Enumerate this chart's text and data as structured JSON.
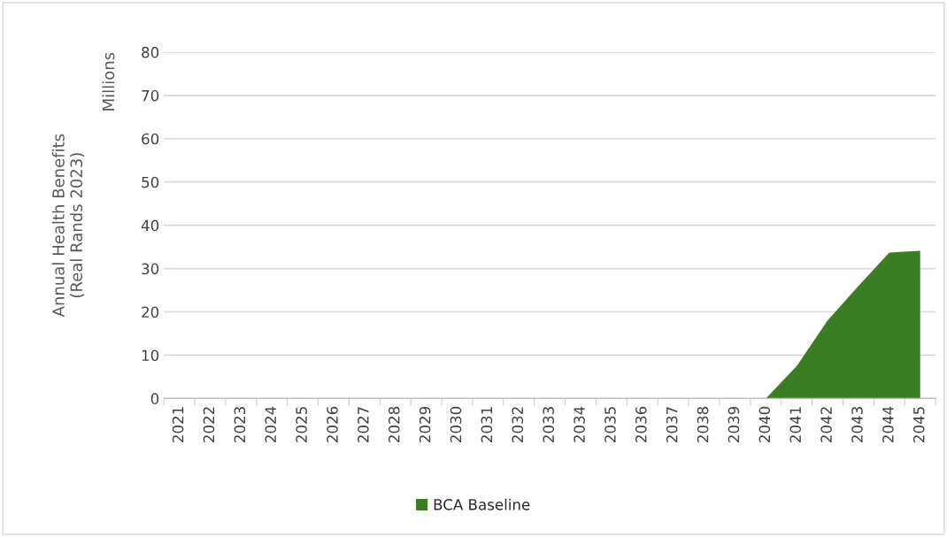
{
  "chart_data": {
    "type": "area",
    "ylabel": "Annual Health Benefits\n(Real Rands 2023)",
    "annotations": [
      "Millions"
    ],
    "categories": [
      "2021",
      "2022",
      "2023",
      "2024",
      "2025",
      "2026",
      "2027",
      "2028",
      "2029",
      "2030",
      "2031",
      "2032",
      "2033",
      "2034",
      "2035",
      "2036",
      "2037",
      "2038",
      "2039",
      "2040",
      "2041",
      "2042",
      "2043",
      "2044",
      "2045"
    ],
    "series": [
      {
        "name": "BCA Baseline",
        "color": "#3a7d23",
        "values": [
          null,
          null,
          null,
          null,
          null,
          null,
          null,
          null,
          null,
          0,
          0,
          0,
          0,
          0,
          0,
          0,
          0,
          0,
          0,
          0,
          7.5,
          18,
          26,
          33.7,
          34.1
        ]
      }
    ],
    "ylim": [
      0,
      80
    ],
    "yticks": [
      0,
      10,
      20,
      30,
      40,
      50,
      60,
      70,
      80
    ],
    "grid": "y",
    "legend": "bottom"
  }
}
